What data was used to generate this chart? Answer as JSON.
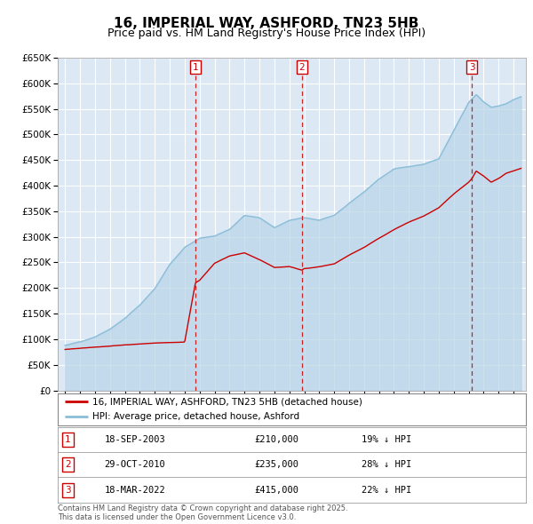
{
  "title": "16, IMPERIAL WAY, ASHFORD, TN23 5HB",
  "subtitle": "Price paid vs. HM Land Registry's House Price Index (HPI)",
  "ylim": [
    0,
    650000
  ],
  "yticks": [
    0,
    50000,
    100000,
    150000,
    200000,
    250000,
    300000,
    350000,
    400000,
    450000,
    500000,
    550000,
    600000,
    650000
  ],
  "xlim_start": 1994.5,
  "xlim_end": 2025.8,
  "hpi_color": "#8bbdd9",
  "hpi_fill_color": "#b8d4e8",
  "price_color": "#cc0000",
  "vline_color": "#cc0000",
  "plot_bg": "#dce9f5",
  "grid_color": "#ffffff",
  "transactions": [
    {
      "label": "1",
      "date": "18-SEP-2003",
      "year": 2003.72,
      "price": 210000,
      "pct": "19%",
      "dir": "↓"
    },
    {
      "label": "2",
      "date": "29-OCT-2010",
      "year": 2010.83,
      "price": 235000,
      "pct": "28%",
      "dir": "↓"
    },
    {
      "label": "3",
      "date": "18-MAR-2022",
      "year": 2022.21,
      "price": 415000,
      "pct": "22%",
      "dir": "↓"
    }
  ],
  "legend_line1": "16, IMPERIAL WAY, ASHFORD, TN23 5HB (detached house)",
  "legend_line2": "HPI: Average price, detached house, Ashford",
  "footer": "Contains HM Land Registry data © Crown copyright and database right 2025.\nThis data is licensed under the Open Government Licence v3.0.",
  "title_fontsize": 11,
  "subtitle_fontsize": 9,
  "tick_fontsize": 7.5
}
